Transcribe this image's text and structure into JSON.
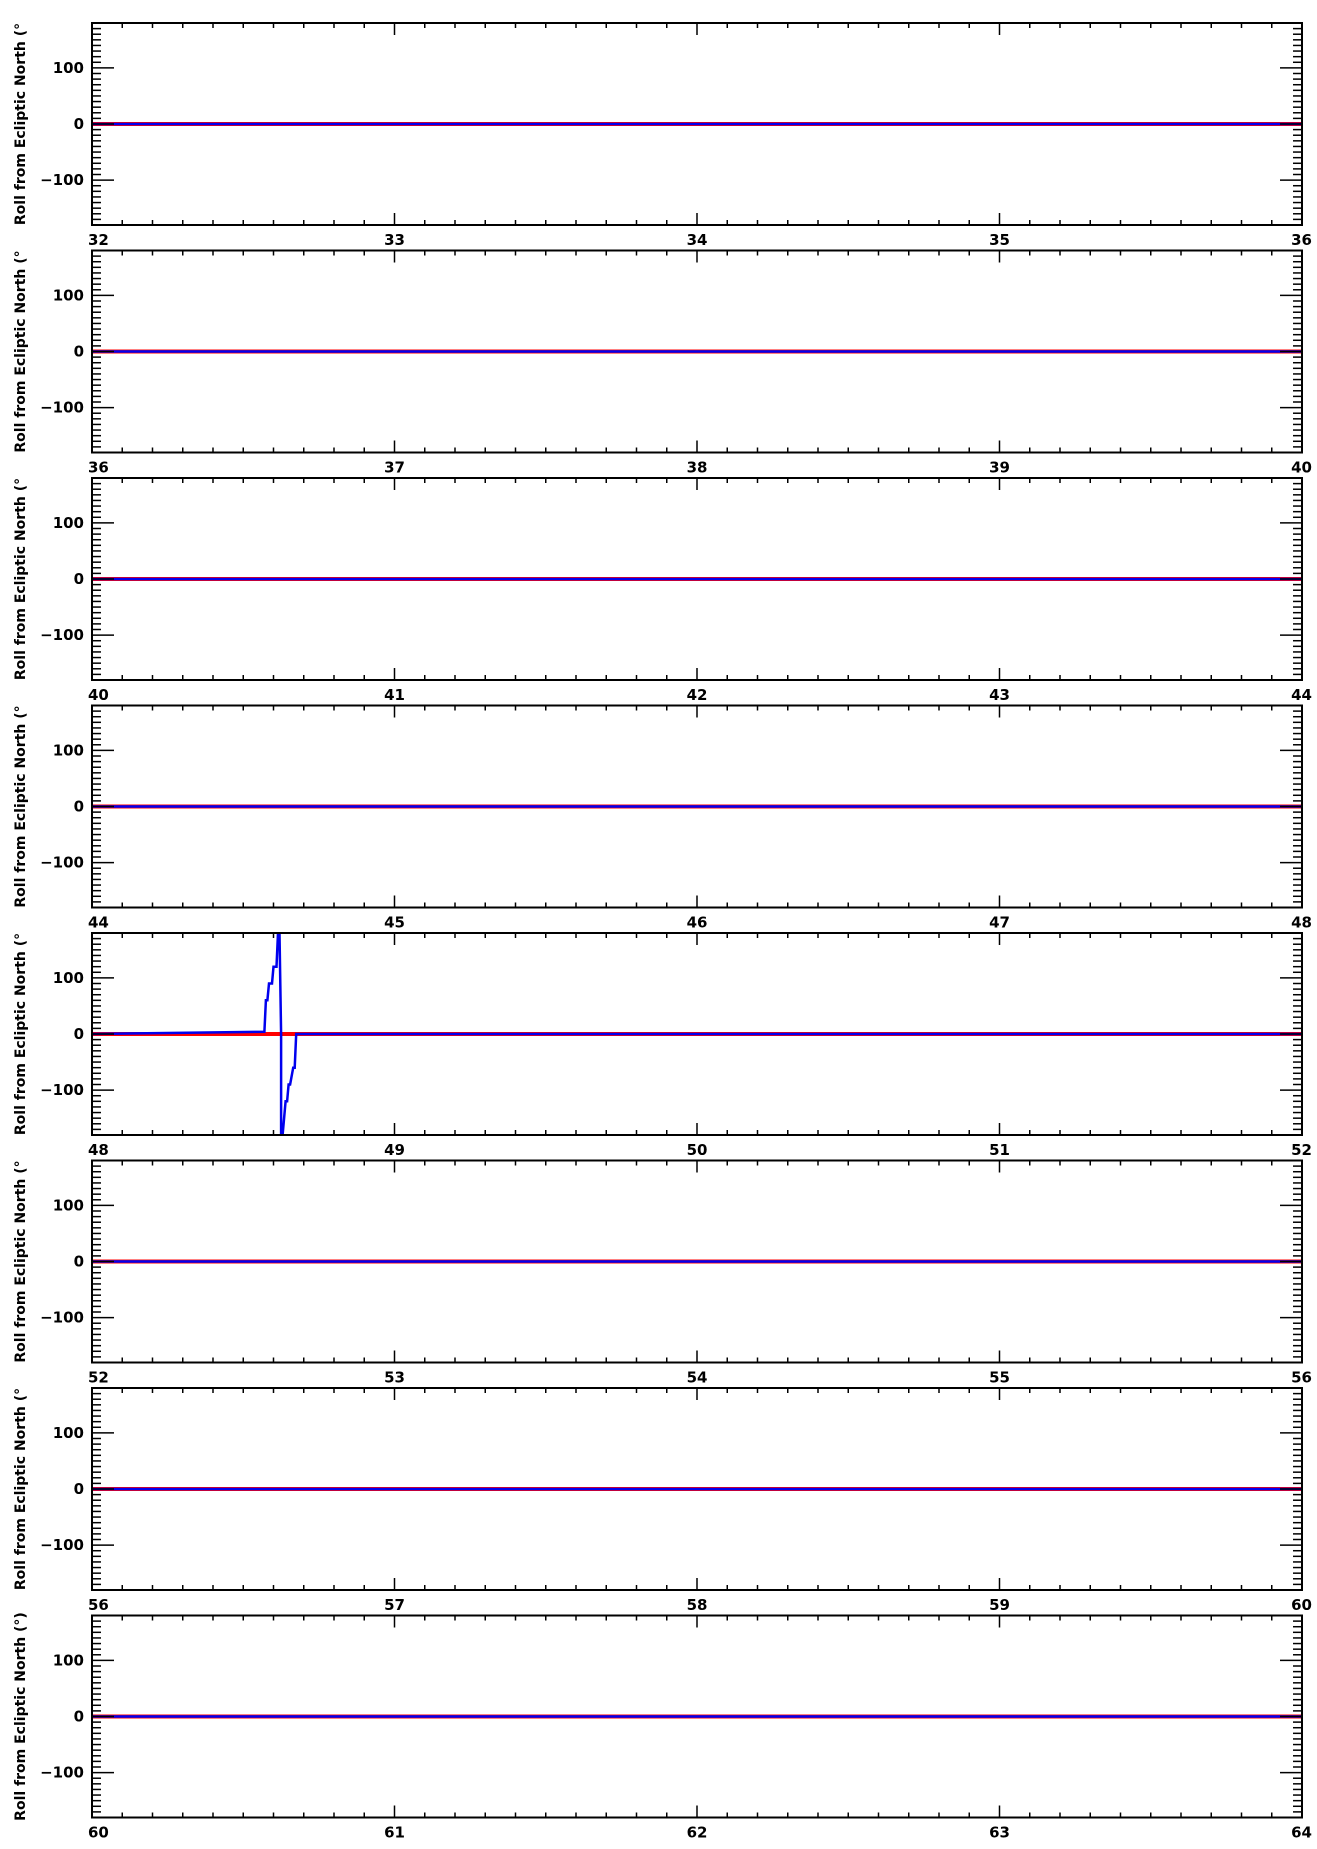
{
  "colors": {
    "red_series": "#ff0000",
    "blue_series": "#0000ee",
    "axes": "#000000",
    "background": "#ffffff"
  },
  "chart_data": [
    {
      "type": "line",
      "xlim": [
        32,
        36
      ],
      "xticks": [
        "32",
        "33",
        "34",
        "35",
        "36"
      ],
      "ylim": [
        -180,
        180
      ],
      "yticks": [
        "100",
        "0",
        "−100"
      ],
      "ylabel": "Roll from Ecliptic North (°",
      "series": [
        {
          "color": "#ff0000",
          "x": [
            32,
            36
          ],
          "y": [
            0,
            0
          ]
        },
        {
          "color": "#0000ee",
          "x": [
            32,
            36
          ],
          "y": [
            0,
            0
          ]
        }
      ]
    },
    {
      "type": "line",
      "xlim": [
        36,
        40
      ],
      "xticks": [
        "36",
        "37",
        "38",
        "39",
        "40"
      ],
      "ylim": [
        -180,
        180
      ],
      "yticks": [
        "100",
        "0",
        "−100"
      ],
      "ylabel": "Roll from Ecliptic North (°",
      "series": [
        {
          "color": "#ff0000",
          "x": [
            36,
            40
          ],
          "y": [
            0,
            0
          ]
        },
        {
          "color": "#0000ee",
          "x": [
            36,
            40
          ],
          "y": [
            0,
            0
          ]
        }
      ]
    },
    {
      "type": "line",
      "xlim": [
        40,
        44
      ],
      "xticks": [
        "40",
        "41",
        "42",
        "43",
        "44"
      ],
      "ylim": [
        -180,
        180
      ],
      "yticks": [
        "100",
        "0",
        "−100"
      ],
      "ylabel": "Roll from Ecliptic North (°",
      "series": [
        {
          "color": "#ff0000",
          "x": [
            40,
            44
          ],
          "y": [
            0,
            0
          ]
        },
        {
          "color": "#0000ee",
          "x": [
            40,
            44
          ],
          "y": [
            0,
            0
          ]
        }
      ]
    },
    {
      "type": "line",
      "xlim": [
        44,
        48
      ],
      "xticks": [
        "44",
        "45",
        "46",
        "47",
        "48"
      ],
      "ylim": [
        -180,
        180
      ],
      "yticks": [
        "100",
        "0",
        "−100"
      ],
      "ylabel": "Roll from Ecliptic North (°",
      "series": [
        {
          "color": "#ff0000",
          "x": [
            44,
            48
          ],
          "y": [
            0,
            0
          ]
        },
        {
          "color": "#0000ee",
          "x": [
            44,
            48
          ],
          "y": [
            0,
            0
          ]
        }
      ]
    },
    {
      "type": "line",
      "xlim": [
        48,
        52
      ],
      "xticks": [
        "48",
        "49",
        "50",
        "51",
        "52"
      ],
      "ylim": [
        -180,
        180
      ],
      "yticks": [
        "100",
        "0",
        "−100"
      ],
      "ylabel": "Roll from Ecliptic North (°",
      "series": [
        {
          "color": "#ff0000",
          "x": [
            48,
            52
          ],
          "y": [
            0,
            0
          ]
        },
        {
          "color": "#0000ee",
          "x": [
            48.0,
            48.57,
            48.575,
            48.58,
            48.585,
            48.595,
            48.6,
            48.61,
            48.615,
            48.62,
            48.625,
            48.625,
            48.63,
            48.64,
            48.645,
            48.65,
            48.655,
            48.665,
            48.67,
            48.675,
            52
          ],
          "y": [
            0,
            4,
            60,
            60,
            90,
            90,
            120,
            120,
            180,
            180,
            0,
            -180,
            -180,
            -120,
            -120,
            -90,
            -90,
            -60,
            -60,
            0,
            0
          ]
        }
      ]
    },
    {
      "type": "line",
      "xlim": [
        52,
        56
      ],
      "xticks": [
        "52",
        "53",
        "54",
        "55",
        "56"
      ],
      "ylim": [
        -180,
        180
      ],
      "yticks": [
        "100",
        "0",
        "−100"
      ],
      "ylabel": "Roll from Ecliptic North (°",
      "series": [
        {
          "color": "#ff0000",
          "x": [
            52,
            56
          ],
          "y": [
            0,
            0
          ]
        },
        {
          "color": "#0000ee",
          "x": [
            52,
            56
          ],
          "y": [
            0,
            0
          ]
        }
      ]
    },
    {
      "type": "line",
      "xlim": [
        56,
        60
      ],
      "xticks": [
        "56",
        "57",
        "58",
        "59",
        "60"
      ],
      "ylim": [
        -180,
        180
      ],
      "yticks": [
        "100",
        "0",
        "−100"
      ],
      "ylabel": "Roll from Ecliptic North (°",
      "series": [
        {
          "color": "#ff0000",
          "x": [
            56,
            60
          ],
          "y": [
            0,
            0
          ]
        },
        {
          "color": "#0000ee",
          "x": [
            56,
            60
          ],
          "y": [
            0,
            0
          ]
        }
      ]
    },
    {
      "type": "line",
      "xlim": [
        60,
        64
      ],
      "xticks": [
        "60",
        "61",
        "62",
        "63",
        "64"
      ],
      "ylim": [
        -180,
        180
      ],
      "yticks": [
        "100",
        "0",
        "−100"
      ],
      "ylabel": "Roll from Ecliptic North (°)",
      "series": [
        {
          "color": "#ff0000",
          "x": [
            60,
            64
          ],
          "y": [
            0,
            0
          ]
        },
        {
          "color": "#0000ee",
          "x": [
            60,
            64
          ],
          "y": [
            0,
            0
          ]
        }
      ]
    }
  ]
}
